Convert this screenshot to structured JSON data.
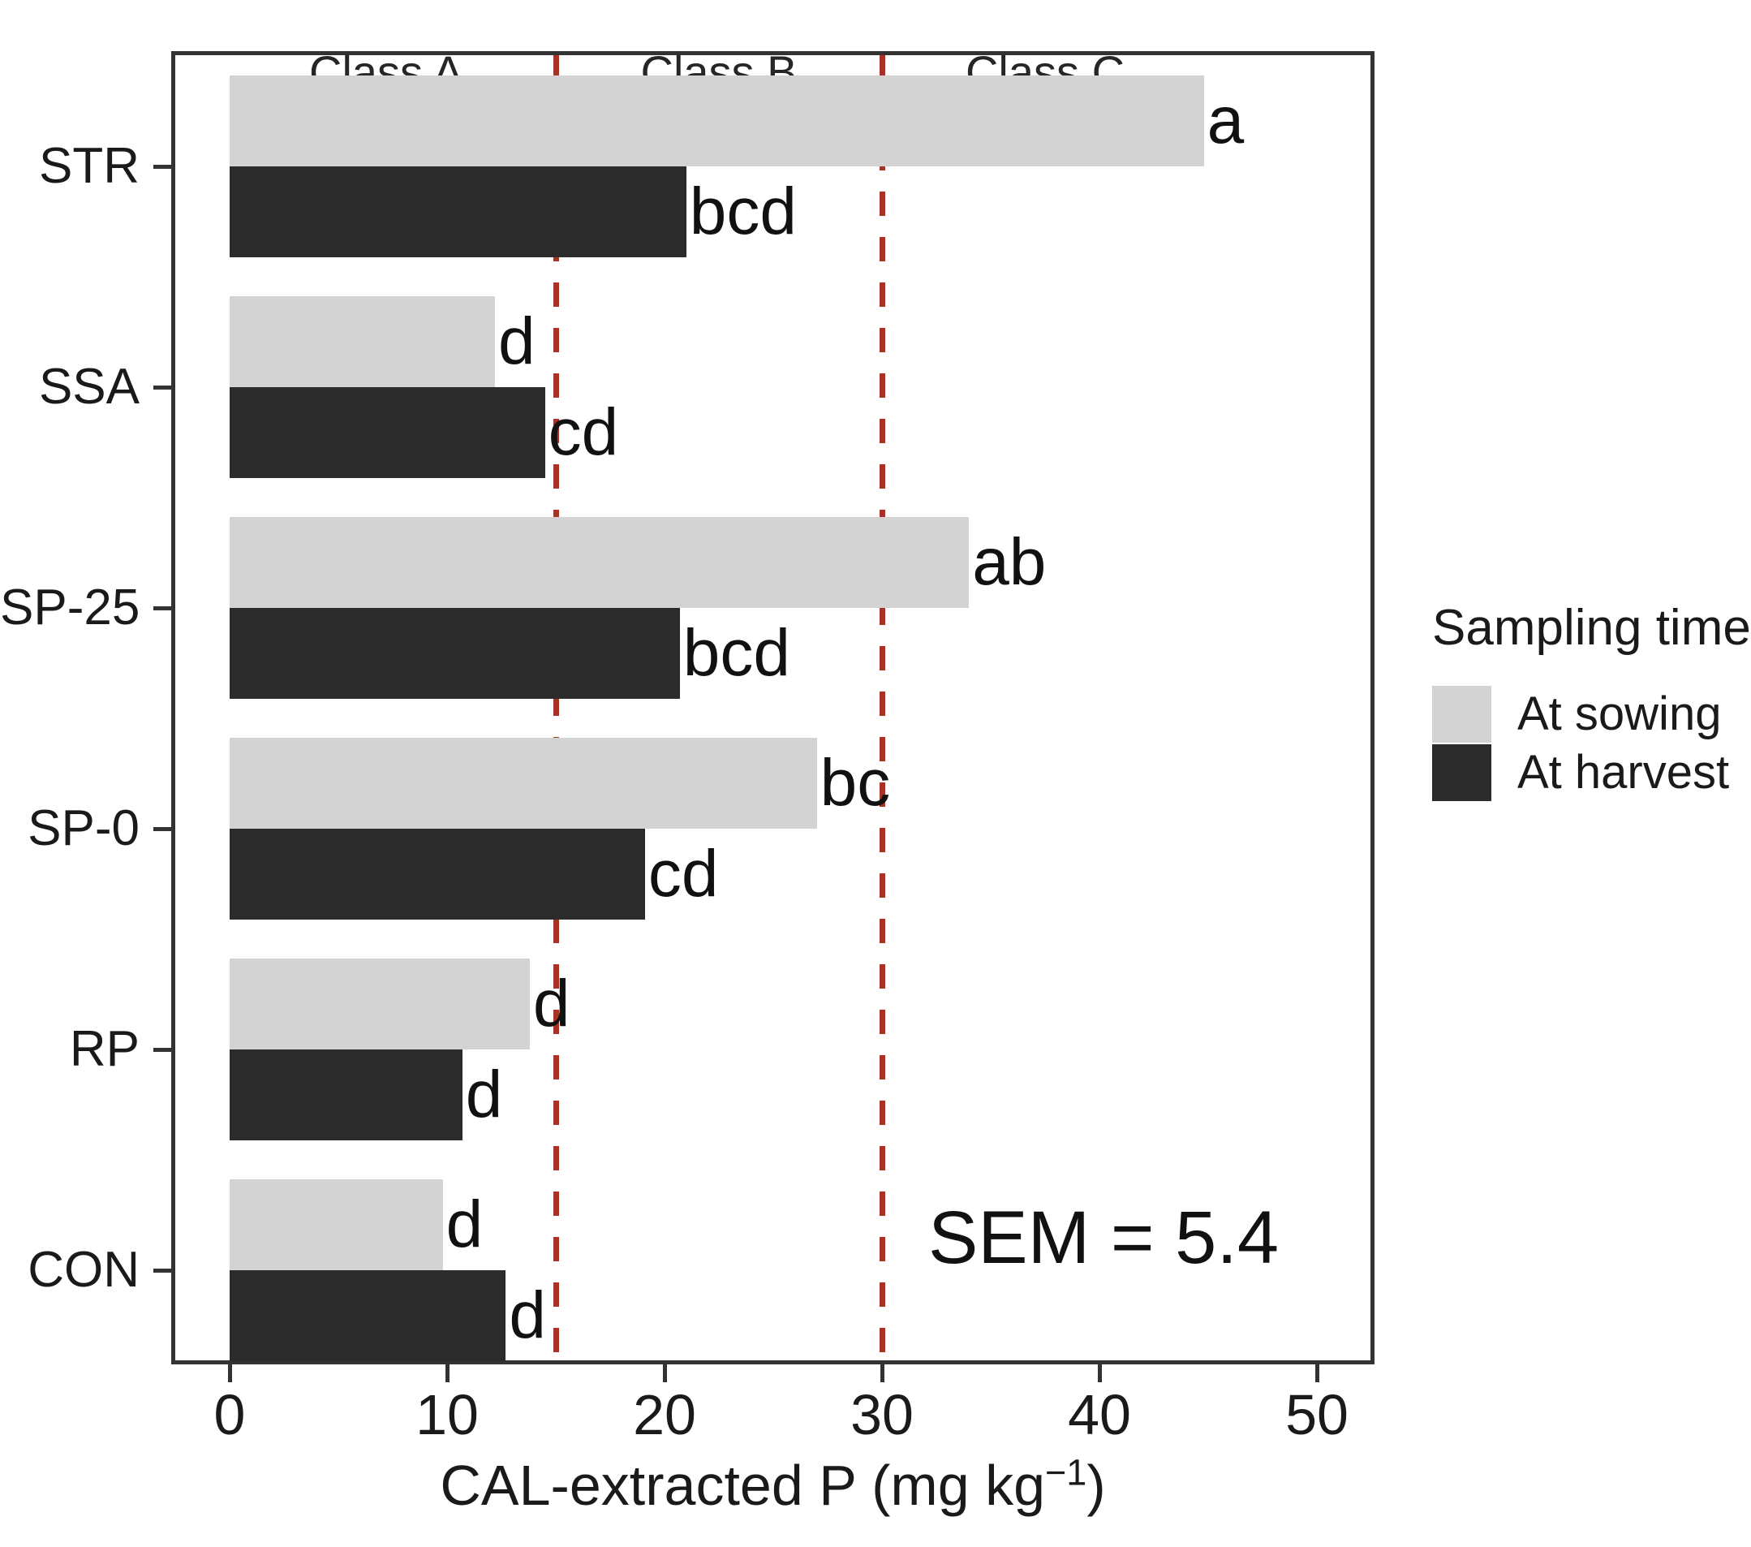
{
  "chart_data": {
    "type": "bar",
    "orientation": "horizontal",
    "xlabel": "CAL-extracted P (mg kg⁻¹)",
    "xlabel_prefix": "CAL-extracted P (mg kg",
    "xlabel_superscript": "−1",
    "xlabel_suffix": ")",
    "categories": [
      "STR",
      "SSA",
      "SP-25",
      "SP-0",
      "RP",
      "CON"
    ],
    "series": [
      {
        "name": "At sowing",
        "color": "#d3d3d3",
        "values": [
          44.8,
          12.2,
          34.0,
          27.0,
          13.8,
          9.8
        ],
        "labels": [
          "a",
          "d",
          "ab",
          "bc",
          "d",
          "d"
        ]
      },
      {
        "name": "At harvest",
        "color": "#2b2b2b",
        "values": [
          21.0,
          14.5,
          20.7,
          19.1,
          10.7,
          12.7
        ],
        "labels": [
          "bcd",
          "cd",
          "bcd",
          "cd",
          "d",
          "d"
        ]
      }
    ],
    "x_ticks": [
      0,
      10,
      20,
      30,
      40,
      50
    ],
    "xlim": [
      -2.5,
      52.5
    ],
    "grid": false,
    "reference_lines": [
      {
        "value": 15,
        "color": "#a93226",
        "style": "dashed"
      },
      {
        "value": 30,
        "color": "#a93226",
        "style": "dashed"
      }
    ],
    "class_labels": [
      {
        "text": "Class A",
        "value": 7.2
      },
      {
        "text": "Class B",
        "value": 22.5
      },
      {
        "text": "Class C",
        "value": 37.5
      }
    ],
    "annotation": "SEM = 5.4",
    "legend": {
      "title": "Sampling time",
      "position": "right",
      "entries": [
        {
          "label": "At sowing",
          "color": "#d3d3d3"
        },
        {
          "label": "At harvest",
          "color": "#2b2b2b"
        }
      ]
    }
  }
}
